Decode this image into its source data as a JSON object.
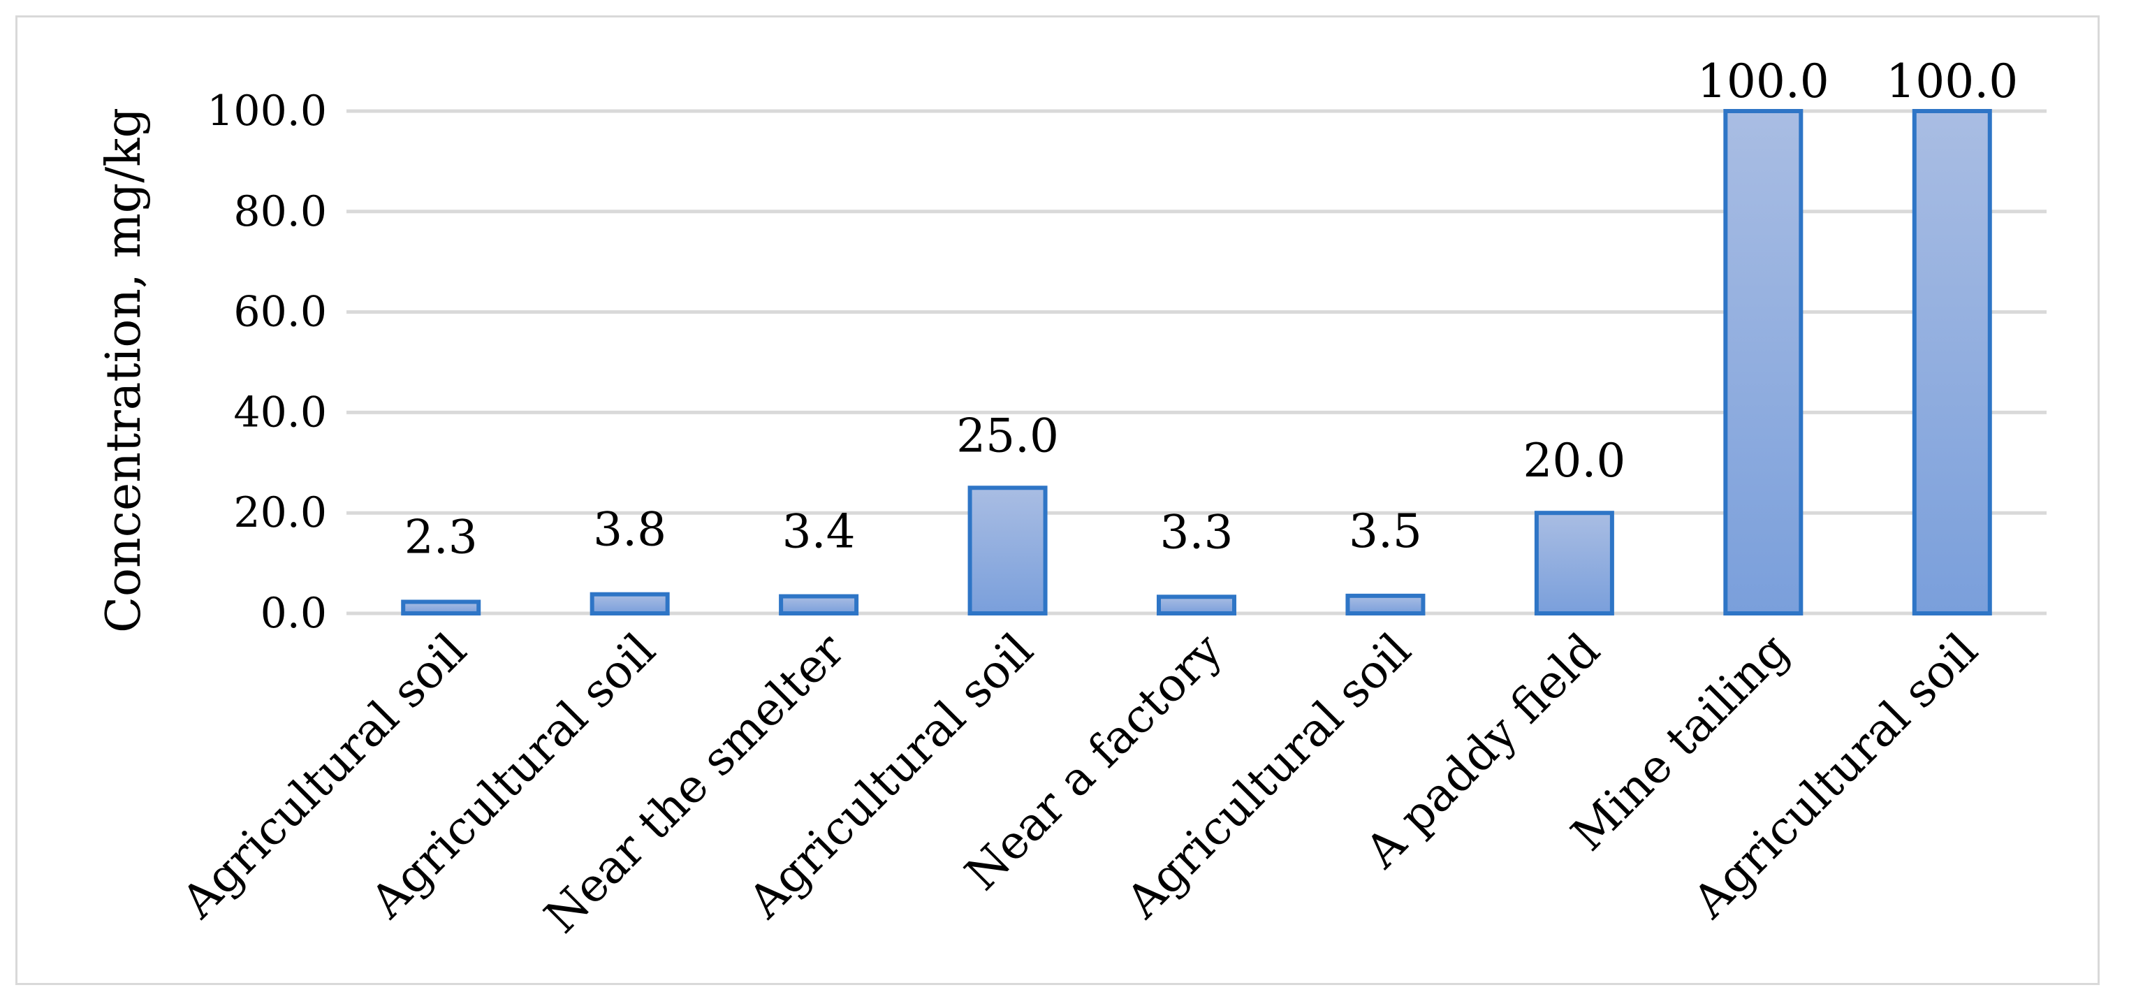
{
  "chart_data": {
    "type": "bar",
    "categories": [
      "Agricultural soil",
      "Agricultural soil",
      "Near the smelter",
      "Agricultural soil",
      "Near a factory",
      "Agricultural soil",
      "A paddy field",
      "Mine tailing",
      "Agricultural soil"
    ],
    "values": [
      2.3,
      3.8,
      3.4,
      25.0,
      3.3,
      3.5,
      20.0,
      100.0,
      100.0
    ],
    "data_labels": [
      "2.3",
      "3.8",
      "3.4",
      "25.0",
      "3.3",
      "3.5",
      "20.0",
      "100.0",
      "100.0"
    ],
    "ylabel": "Concentration, mg/kg",
    "xlabel": "",
    "ylim": [
      0,
      100
    ],
    "yticks": [
      0,
      20,
      40,
      60,
      80,
      100
    ],
    "ytick_labels": [
      "0.0",
      "20.0",
      "40.0",
      "60.0",
      "80.0",
      "100.0"
    ],
    "grid": true,
    "bar_fill_top": "#a9bde3",
    "bar_fill_bottom": "#7a9fdb",
    "bar_stroke": "#2e75c6",
    "grid_color": "#d9d9d9"
  }
}
